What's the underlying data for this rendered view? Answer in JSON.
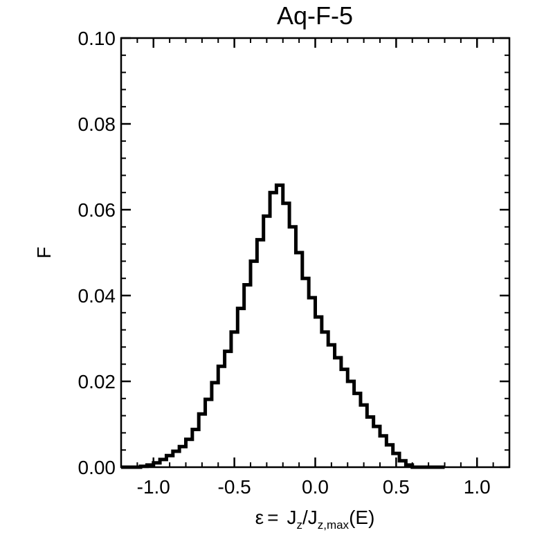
{
  "chart_data": {
    "type": "histogram",
    "title": "Aq-F-5",
    "ylabel": "F",
    "xlabel": {
      "epsilon": "ε",
      "equals": "=",
      "j1": "J",
      "j1_sub": "z",
      "slash": "/J",
      "j2_sub": "z,max",
      "tail": "(E)"
    },
    "xlim": [
      -1.2,
      1.2
    ],
    "ylim": [
      0.0,
      0.1
    ],
    "xticks": [
      -1.0,
      -0.5,
      0.0,
      0.5,
      1.0
    ],
    "xtick_labels": [
      "-1.0",
      "-0.5",
      "0.0",
      "0.5",
      "1.0"
    ],
    "yticks": [
      0.0,
      0.02,
      0.04,
      0.06,
      0.08,
      0.1
    ],
    "ytick_labels": [
      "0.00",
      "0.02",
      "0.04",
      "0.06",
      "0.08",
      "0.10"
    ],
    "bin_width": 0.04,
    "bin_edges_start": -1.2,
    "values": [
      0.0,
      0.0,
      0.0,
      0.0002,
      0.0005,
      0.001,
      0.0018,
      0.0027,
      0.0037,
      0.0048,
      0.0065,
      0.0088,
      0.0124,
      0.0158,
      0.0197,
      0.0235,
      0.027,
      0.0315,
      0.037,
      0.0425,
      0.048,
      0.053,
      0.0585,
      0.064,
      0.0657,
      0.0615,
      0.056,
      0.05,
      0.044,
      0.0395,
      0.035,
      0.0315,
      0.0285,
      0.0255,
      0.0228,
      0.02,
      0.0172,
      0.0145,
      0.0117,
      0.0095,
      0.0073,
      0.0052,
      0.0032,
      0.0015,
      0.0005,
      0.0,
      0.0,
      0.0,
      0.0,
      0.0
    ],
    "grid": false,
    "line_color": "#000000"
  }
}
